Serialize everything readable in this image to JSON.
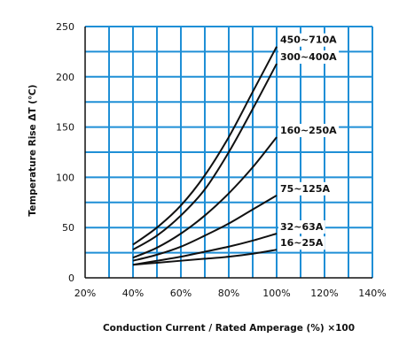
{
  "chart_data": {
    "type": "line",
    "title": "",
    "xlabel": "Conduction Current / Rated Amperage (%) ×100",
    "ylabel": "Temperature Rise ΔT (℃)",
    "xlim": [
      20,
      140
    ],
    "ylim": [
      0,
      250
    ],
    "x_unit_suffix": "%",
    "x_ticks": [
      20,
      40,
      60,
      80,
      100,
      120,
      140
    ],
    "y_ticks": [
      0,
      50,
      100,
      150,
      200,
      250
    ],
    "x_minor_step": 10,
    "y_minor_step": 25,
    "grid": true,
    "legend": "inline labels at line ends",
    "colors": {
      "grid": "#1f8fd6",
      "line": "#111111",
      "axis": "#111111"
    },
    "series": [
      {
        "name": "450~710A",
        "x": [
          40,
          50,
          60,
          70,
          80,
          90,
          100
        ],
        "y": [
          33,
          50,
          72,
          102,
          140,
          185,
          230
        ]
      },
      {
        "name": "300~400A",
        "x": [
          40,
          50,
          60,
          70,
          80,
          90,
          100
        ],
        "y": [
          28,
          42,
          62,
          88,
          125,
          168,
          213
        ]
      },
      {
        "name": "160~250A",
        "x": [
          40,
          50,
          60,
          70,
          80,
          90,
          100
        ],
        "y": [
          20,
          30,
          44,
          62,
          84,
          110,
          140
        ]
      },
      {
        "name": "75~125A",
        "x": [
          40,
          50,
          60,
          70,
          80,
          90,
          100
        ],
        "y": [
          17,
          23,
          31,
          42,
          54,
          68,
          82
        ]
      },
      {
        "name": "32~63A",
        "x": [
          40,
          50,
          60,
          70,
          80,
          90,
          100
        ],
        "y": [
          13,
          17,
          21,
          26,
          31,
          37,
          44
        ]
      },
      {
        "name": "16~25A",
        "x": [
          40,
          50,
          60,
          70,
          80,
          90,
          100
        ],
        "y": [
          13,
          15,
          17,
          19,
          21,
          24,
          28
        ]
      }
    ]
  }
}
